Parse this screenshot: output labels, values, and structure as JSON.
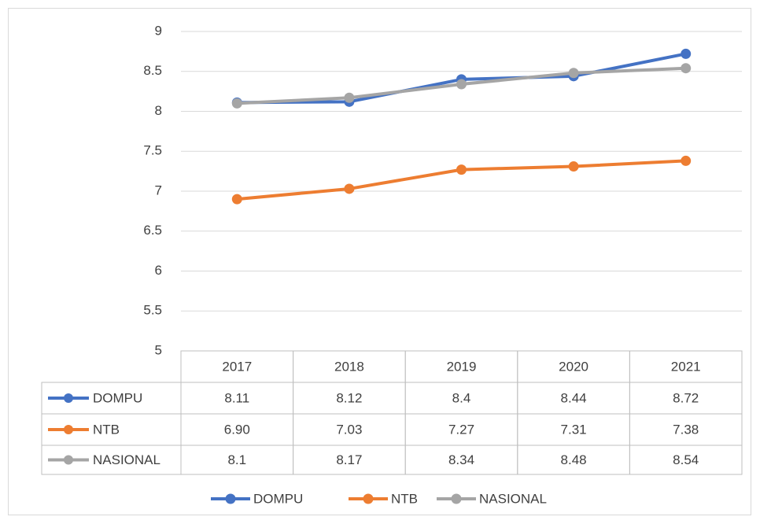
{
  "chart_data": {
    "type": "line",
    "categories": [
      "2017",
      "2018",
      "2019",
      "2020",
      "2021"
    ],
    "series": [
      {
        "name": "DOMPU",
        "color": "#4472c4",
        "values": [
          8.11,
          8.12,
          8.4,
          8.44,
          8.72
        ]
      },
      {
        "name": "NTB",
        "color": "#ed7d31",
        "values": [
          6.9,
          7.03,
          7.27,
          7.31,
          7.38
        ],
        "value_labels": [
          "6.90",
          "7.03",
          "7.27",
          "7.31",
          "7.38"
        ]
      },
      {
        "name": "NASIONAL",
        "color": "#a5a5a5",
        "values": [
          8.1,
          8.17,
          8.34,
          8.48,
          8.54
        ]
      }
    ],
    "ylim": [
      5,
      9
    ],
    "yticks": [
      5,
      5.5,
      6,
      6.5,
      7,
      7.5,
      8,
      8.5,
      9
    ],
    "grid": true,
    "legend": "bottom"
  }
}
